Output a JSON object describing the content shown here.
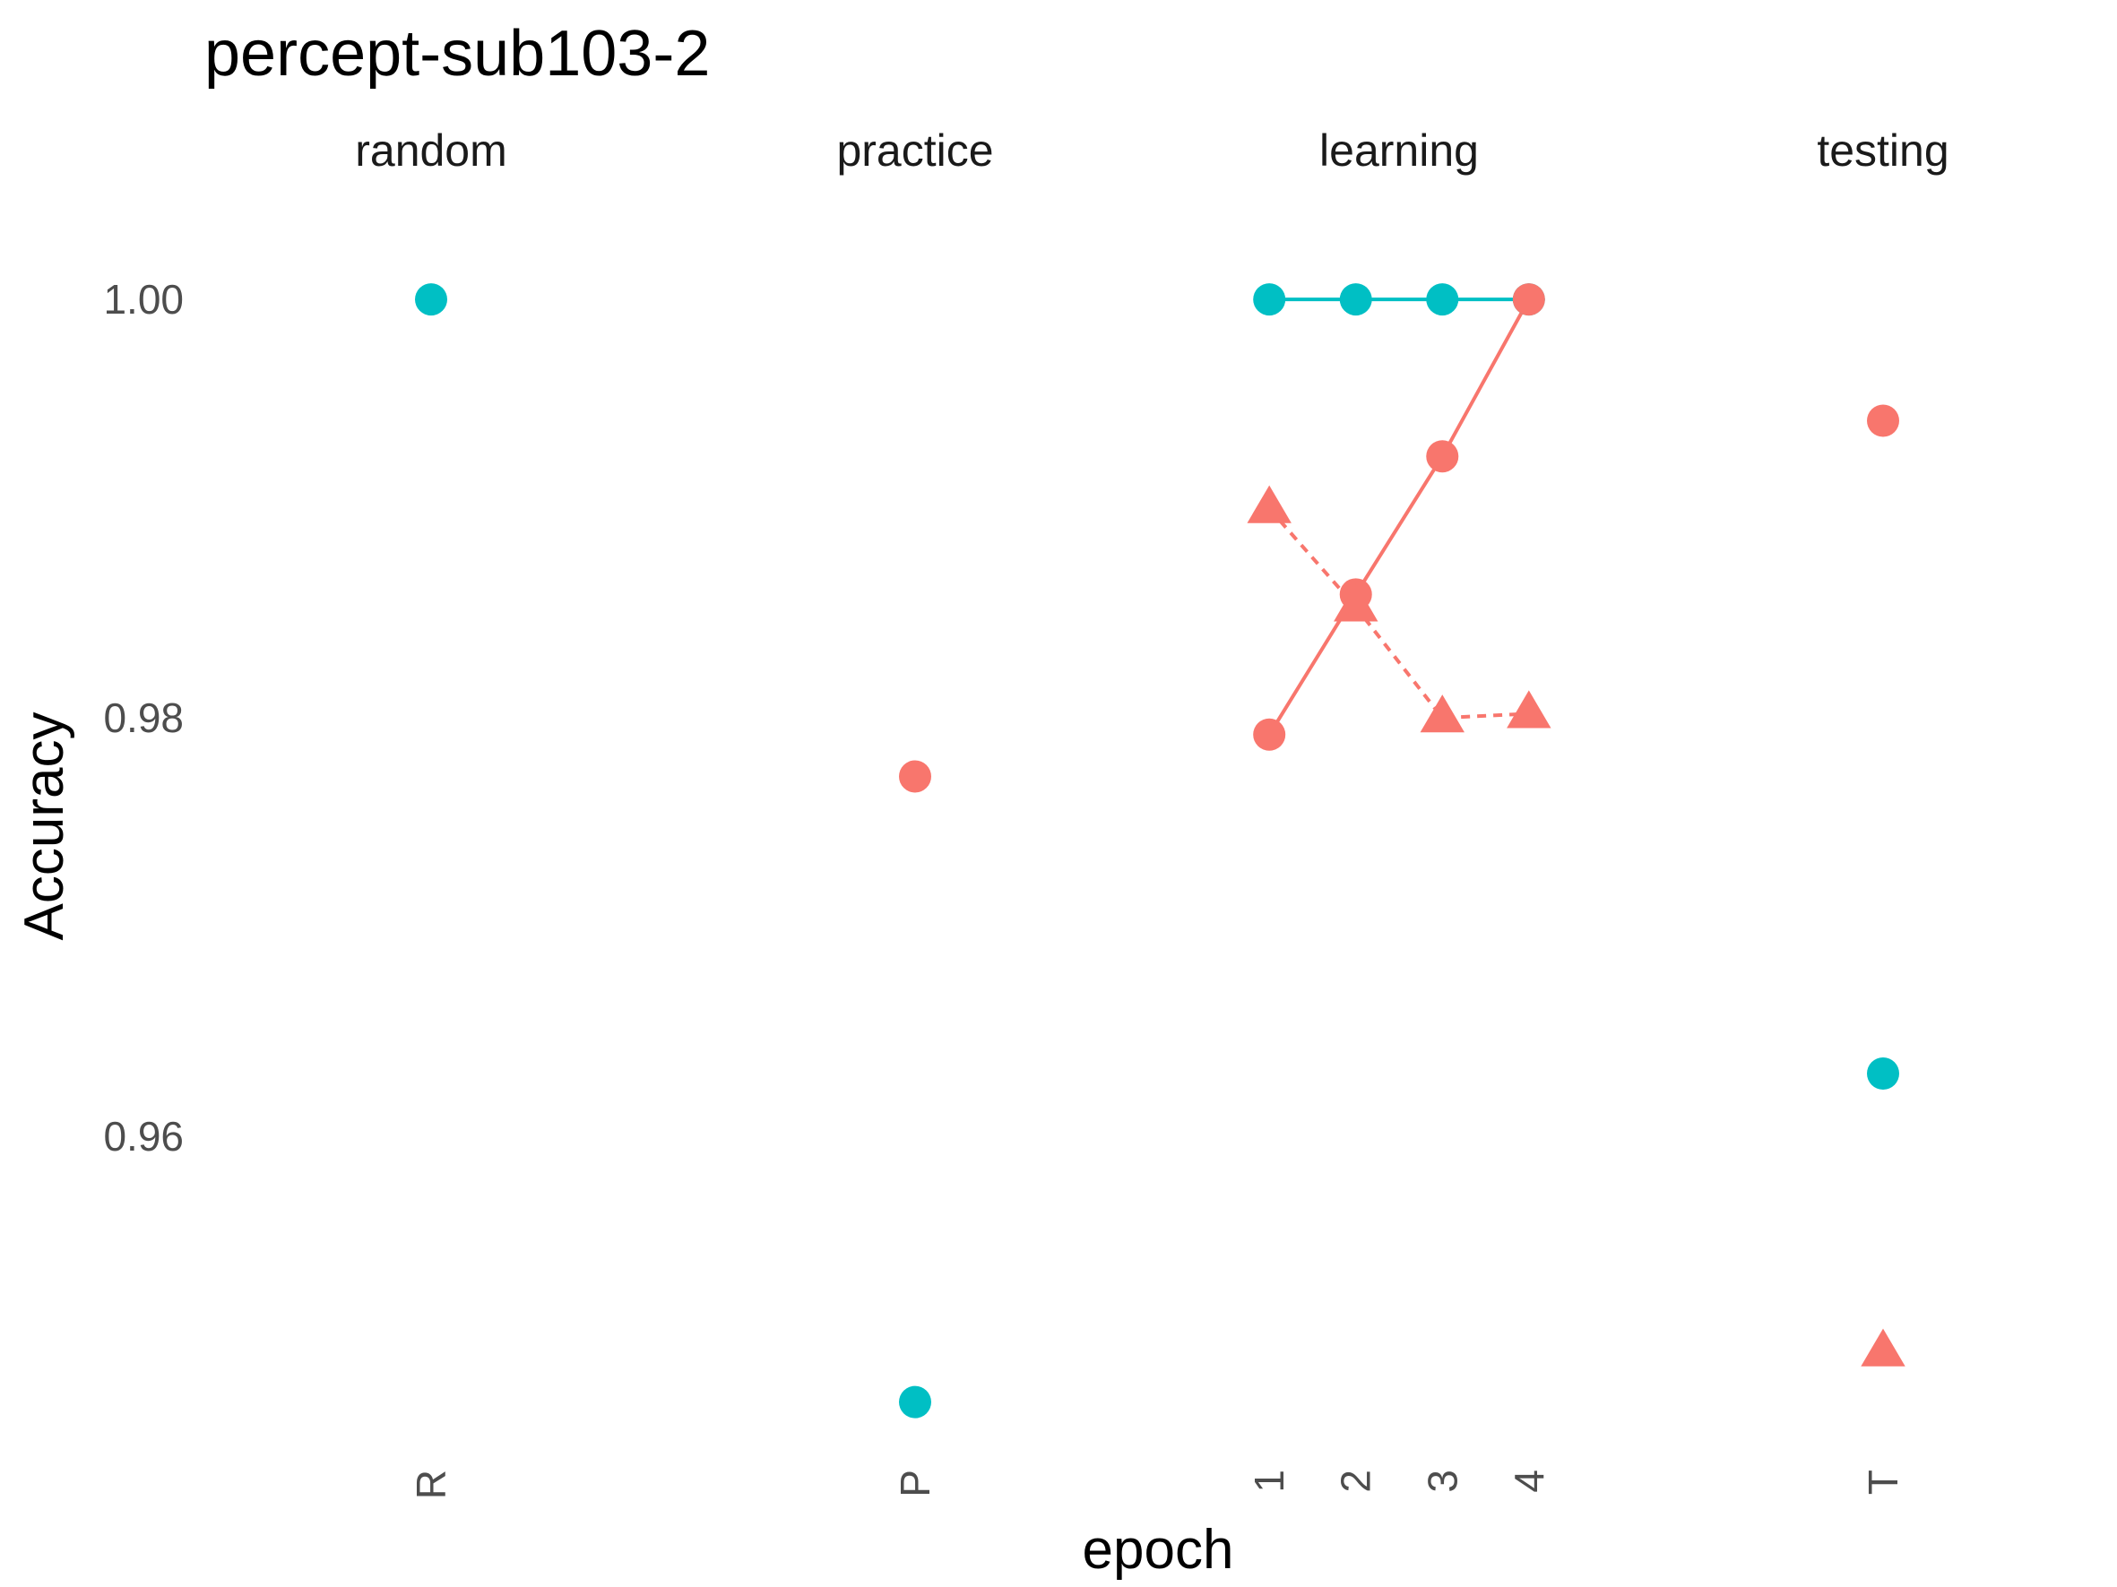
{
  "chart_data": {
    "type": "scatter",
    "title": "percept-sub103-2",
    "xlabel": "epoch",
    "ylabel": "Accuracy",
    "ylim": [
      0.9445,
      1.0048
    ],
    "yticks": [
      {
        "value": 1.0,
        "label": "1.00"
      },
      {
        "value": 0.98,
        "label": "0.98"
      },
      {
        "value": 0.96,
        "label": "0.96"
      }
    ],
    "grid": false,
    "legend": "none",
    "panels": [
      {
        "label": "random",
        "categories": [
          "R"
        ]
      },
      {
        "label": "practice",
        "categories": [
          "P"
        ]
      },
      {
        "label": "learning",
        "categories": [
          "1",
          "2",
          "3",
          "4"
        ]
      },
      {
        "label": "testing",
        "categories": [
          "T"
        ]
      }
    ],
    "series": [
      {
        "color": "#00BFC4",
        "shape": "circle",
        "linetype": "solid",
        "points": [
          {
            "panel": "random",
            "x": "R",
            "y": 1.0
          },
          {
            "panel": "practice",
            "x": "P",
            "y": 0.9473
          },
          {
            "panel": "learning",
            "x": "1",
            "y": 1.0
          },
          {
            "panel": "learning",
            "x": "2",
            "y": 1.0
          },
          {
            "panel": "learning",
            "x": "3",
            "y": 1.0
          },
          {
            "panel": "learning",
            "x": "4",
            "y": 1.0
          },
          {
            "panel": "testing",
            "x": "T",
            "y": 0.963
          }
        ]
      },
      {
        "color": "#F8766D",
        "shape": "circle",
        "linetype": "solid",
        "points": [
          {
            "panel": "practice",
            "x": "P",
            "y": 0.9772
          },
          {
            "panel": "learning",
            "x": "1",
            "y": 0.9792
          },
          {
            "panel": "learning",
            "x": "2",
            "y": 0.9859
          },
          {
            "panel": "learning",
            "x": "3",
            "y": 0.9925
          },
          {
            "panel": "learning",
            "x": "4",
            "y": 1.0
          },
          {
            "panel": "testing",
            "x": "T",
            "y": 0.9942
          }
        ]
      },
      {
        "color": "#F8766D",
        "shape": "triangle",
        "linetype": "dashed",
        "points": [
          {
            "panel": "learning",
            "x": "1",
            "y": 0.99
          },
          {
            "panel": "learning",
            "x": "2",
            "y": 0.9853
          },
          {
            "panel": "learning",
            "x": "3",
            "y": 0.98
          },
          {
            "panel": "learning",
            "x": "4",
            "y": 0.9802
          },
          {
            "panel": "testing",
            "x": "T",
            "y": 0.9497
          }
        ]
      }
    ]
  }
}
